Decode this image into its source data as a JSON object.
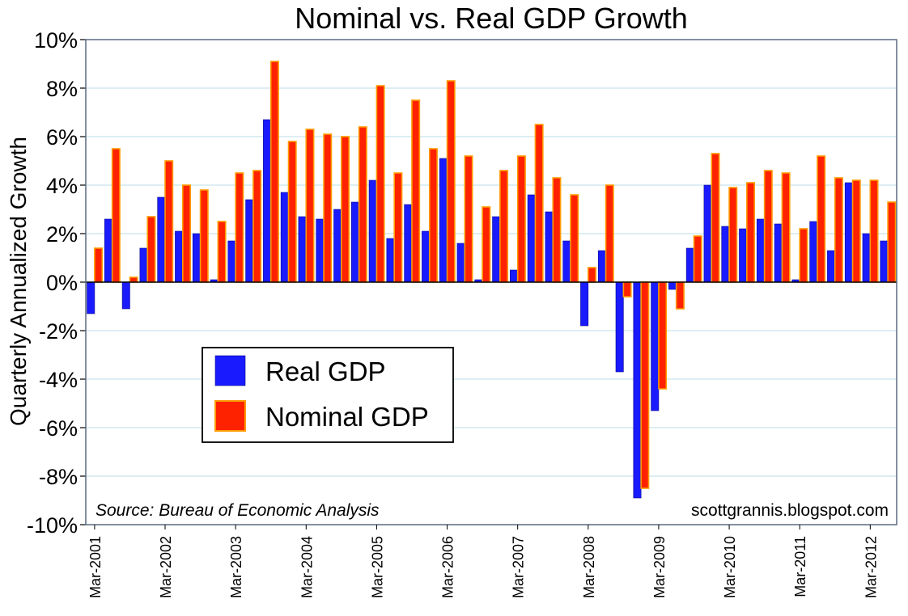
{
  "chart_data": {
    "type": "bar",
    "title": "Nominal vs. Real GDP Growth",
    "ylabel": "Quarterly Annualized Growth",
    "xlabel": "",
    "ylim": [
      -10,
      10
    ],
    "y_ticks": [
      "10%",
      "8%",
      "6%",
      "4%",
      "2%",
      "0%",
      "-2%",
      "-4%",
      "-6%",
      "-8%",
      "-10%"
    ],
    "grid": true,
    "legend_position": "left-center",
    "source": "Source: Bureau of Economic Analysis",
    "credit": "scottgrannis.blogspot.com",
    "tick_labels": [
      "Mar-2001",
      "Mar-2002",
      "Mar-2003",
      "Mar-2004",
      "Mar-2005",
      "Mar-2006",
      "Mar-2007",
      "Mar-2008",
      "Mar-2009",
      "Mar-2010",
      "Mar-2011",
      "Mar-2012"
    ],
    "series": [
      {
        "name": "Real GDP",
        "color": "#1a1aff",
        "values": [
          -1.3,
          2.6,
          -1.1,
          1.4,
          3.5,
          2.1,
          2.0,
          0.1,
          1.7,
          3.4,
          6.7,
          3.7,
          2.7,
          2.6,
          3.0,
          3.3,
          4.2,
          1.8,
          3.2,
          2.1,
          5.1,
          1.6,
          0.1,
          2.7,
          0.5,
          3.6,
          2.9,
          1.7,
          -1.8,
          1.3,
          -3.7,
          -8.9,
          -5.3,
          -0.3,
          1.4,
          4.0,
          2.3,
          2.2,
          2.6,
          2.4,
          0.1,
          2.5,
          1.3,
          4.1,
          2.0,
          1.7
        ]
      },
      {
        "name": "Nominal GDP",
        "color": "#ff2200",
        "values": [
          1.4,
          5.5,
          0.2,
          2.7,
          5.0,
          4.0,
          3.8,
          2.5,
          4.5,
          4.6,
          9.1,
          5.8,
          6.3,
          6.1,
          6.0,
          6.4,
          8.1,
          4.5,
          7.5,
          5.5,
          8.3,
          5.2,
          3.1,
          4.6,
          5.2,
          6.5,
          4.3,
          3.6,
          0.6,
          4.0,
          -0.6,
          -8.5,
          -4.4,
          -1.1,
          1.9,
          5.3,
          3.9,
          4.1,
          4.6,
          4.5,
          2.2,
          5.2,
          4.3,
          4.2,
          4.2,
          3.3
        ]
      }
    ]
  }
}
